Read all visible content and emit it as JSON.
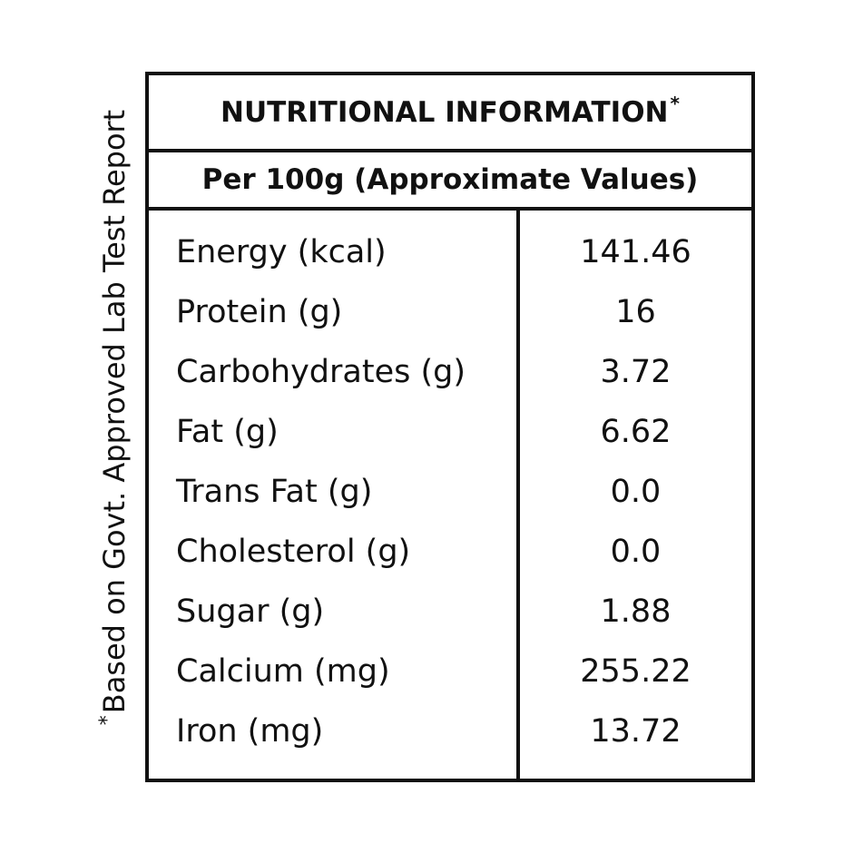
{
  "side_note": {
    "star": "*",
    "text": "Based on Govt. Approved Lab Test Report"
  },
  "header": {
    "title": "NUTRITIONAL INFORMATION",
    "title_star": "*",
    "subtitle": "Per 100g (Approximate Values)"
  },
  "rows": [
    {
      "label": "Energy (kcal)",
      "value": "141.46"
    },
    {
      "label": "Protein (g)",
      "value": "16"
    },
    {
      "label": "Carbohydrates (g)",
      "value": "3.72"
    },
    {
      "label": "Fat (g)",
      "value": "6.62"
    },
    {
      "label": "Trans Fat (g)",
      "value": "0.0"
    },
    {
      "label": "Cholesterol (g)",
      "value": "0.0"
    },
    {
      "label": "Sugar (g)",
      "value": "1.88"
    },
    {
      "label": "Calcium (mg)",
      "value": "255.22"
    },
    {
      "label": "Iron (mg)",
      "value": "13.72"
    }
  ]
}
